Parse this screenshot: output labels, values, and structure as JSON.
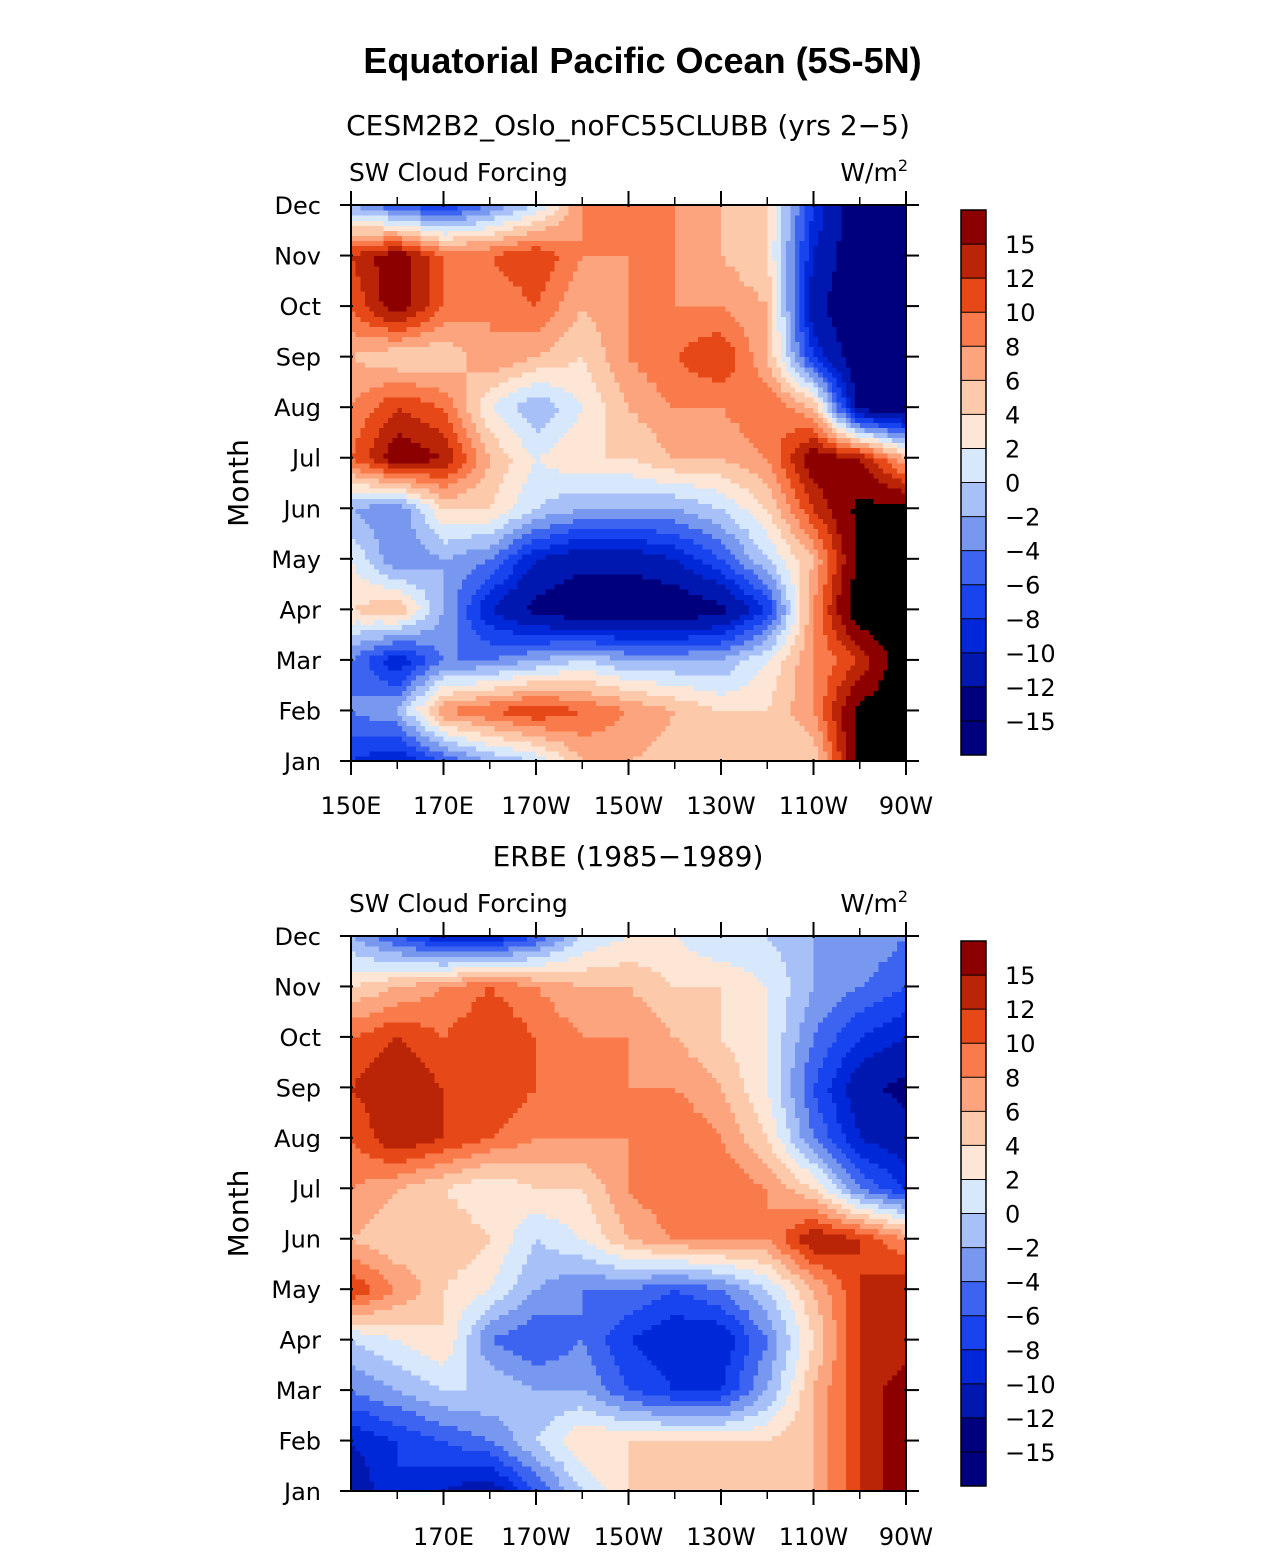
{
  "title": "Equatorial Pacific Ocean (5S-5N)",
  "chart_data": [
    {
      "type": "heatmap",
      "title": "CESM2B2_Oslo_noFC55CLUBB (yrs 2−5)",
      "left_label": "SW Cloud Forcing",
      "right_label": "W/m",
      "right_label_sup": "2",
      "ylabel": "Month",
      "x_ticks": [
        "150E",
        "170E",
        "170W",
        "150W",
        "130W",
        "110W",
        "90W"
      ],
      "x_tick_lon": [
        150,
        170,
        190,
        210,
        230,
        250,
        270
      ],
      "y_ticks": [
        "Jan",
        "Feb",
        "Mar",
        "Apr",
        "May",
        "Jun",
        "Jul",
        "Aug",
        "Sep",
        "Oct",
        "Nov",
        "Dec"
      ],
      "xlim": [
        150,
        270
      ],
      "colorbar_levels": [
        "15",
        "12",
        "10",
        "8",
        "6",
        "4",
        "2",
        "0",
        "−2",
        "−4",
        "−6",
        "−8",
        "−10",
        "−12",
        "−15"
      ],
      "lon": [
        150,
        160,
        170,
        180,
        190,
        200,
        210,
        220,
        230,
        240,
        250,
        260,
        270
      ],
      "values": [
        [
          -10,
          -12,
          -8,
          -4,
          -2,
          4,
          4,
          3,
          2,
          2,
          2,
          16,
          18
        ],
        [
          -6,
          -4,
          6,
          8,
          10,
          8,
          6,
          4,
          2,
          2,
          6,
          16,
          18
        ],
        [
          -6,
          -12,
          -6,
          -6,
          -4,
          -2,
          -4,
          -4,
          -4,
          0,
          6,
          10,
          18
        ],
        [
          2,
          4,
          -4,
          -12,
          -16,
          -18,
          -18,
          -18,
          -16,
          -10,
          6,
          18,
          18
        ],
        [
          0,
          -6,
          -4,
          -6,
          -12,
          -14,
          -14,
          -12,
          -8,
          -2,
          4,
          16,
          18
        ],
        [
          -4,
          -6,
          2,
          2,
          -2,
          -4,
          -4,
          -4,
          -2,
          2,
          10,
          16,
          16
        ],
        [
          8,
          14,
          12,
          4,
          0,
          2,
          2,
          4,
          4,
          6,
          14,
          12,
          4
        ],
        [
          6,
          10,
          8,
          0,
          -4,
          0,
          4,
          6,
          6,
          8,
          4,
          -16,
          -18
        ],
        [
          4,
          2,
          2,
          6,
          4,
          2,
          6,
          8,
          10,
          4,
          -10,
          -18,
          -18
        ],
        [
          8,
          14,
          8,
          6,
          8,
          4,
          6,
          6,
          6,
          4,
          -14,
          -18,
          -18
        ],
        [
          10,
          14,
          8,
          8,
          10,
          6,
          6,
          6,
          4,
          2,
          -12,
          -18,
          -18
        ],
        [
          -4,
          -8,
          -10,
          -6,
          -2,
          6,
          6,
          6,
          4,
          2,
          -10,
          -18,
          -18
        ]
      ]
    },
    {
      "type": "heatmap",
      "title": "ERBE (1985−1989)",
      "left_label": "SW Cloud Forcing",
      "right_label": "W/m",
      "right_label_sup": "2",
      "ylabel": "Month",
      "x_ticks": [
        "170E",
        "170W",
        "150W",
        "130W",
        "110W",
        "90W"
      ],
      "x_tick_lon": [
        170,
        190,
        210,
        230,
        250,
        270
      ],
      "y_ticks": [
        "Jan",
        "Feb",
        "Mar",
        "Apr",
        "May",
        "Jun",
        "Jul",
        "Aug",
        "Sep",
        "Oct",
        "Nov",
        "Dec"
      ],
      "xlim": [
        150,
        270
      ],
      "colorbar_levels": [
        "15",
        "12",
        "10",
        "8",
        "6",
        "4",
        "2",
        "0",
        "−2",
        "−4",
        "−6",
        "−8",
        "−10",
        "−12",
        "−15"
      ],
      "lon": [
        150,
        160,
        170,
        180,
        190,
        200,
        210,
        220,
        230,
        240,
        250,
        260,
        270
      ],
      "values": [
        [
          -14,
          -10,
          -12,
          -14,
          -8,
          -2,
          2,
          2,
          2,
          2,
          4,
          10,
          14
        ],
        [
          -12,
          -10,
          -8,
          -6,
          -2,
          2,
          2,
          2,
          2,
          2,
          4,
          10,
          14
        ],
        [
          -6,
          -4,
          -2,
          -2,
          -4,
          -4,
          -8,
          -10,
          -10,
          -4,
          4,
          10,
          14
        ],
        [
          -2,
          0,
          2,
          -6,
          -8,
          -6,
          -10,
          -12,
          -12,
          -6,
          2,
          10,
          10
        ],
        [
          10,
          6,
          2,
          0,
          -4,
          -6,
          -6,
          -8,
          -6,
          -2,
          4,
          10,
          12
        ],
        [
          4,
          2,
          4,
          2,
          -2,
          0,
          4,
          6,
          6,
          6,
          12,
          10,
          6
        ],
        [
          6,
          4,
          2,
          0,
          2,
          2,
          6,
          8,
          8,
          6,
          2,
          -6,
          -10
        ],
        [
          8,
          12,
          10,
          8,
          6,
          6,
          6,
          8,
          6,
          2,
          -6,
          -12,
          -14
        ],
        [
          10,
          12,
          10,
          10,
          8,
          6,
          6,
          6,
          4,
          0,
          -8,
          -14,
          -16
        ],
        [
          8,
          10,
          8,
          10,
          8,
          6,
          6,
          4,
          2,
          0,
          -6,
          -10,
          -12
        ],
        [
          2,
          4,
          6,
          8,
          6,
          4,
          4,
          2,
          2,
          0,
          -4,
          -6,
          -8
        ],
        [
          -4,
          -8,
          -12,
          -12,
          -8,
          -2,
          0,
          0,
          -2,
          -2,
          -4,
          -4,
          -6
        ]
      ]
    }
  ],
  "colors": {
    "levels": [
      "#00007f",
      "#0018b0",
      "#0028d8",
      "#1844f0",
      "#3c64f0",
      "#7898f0",
      "#a8c0f8",
      "#d8e8fc",
      "#fde6d6",
      "#fccaaa",
      "#fba47e",
      "#f97a4a",
      "#e64818",
      "#ba2508",
      "#8c0000"
    ]
  }
}
